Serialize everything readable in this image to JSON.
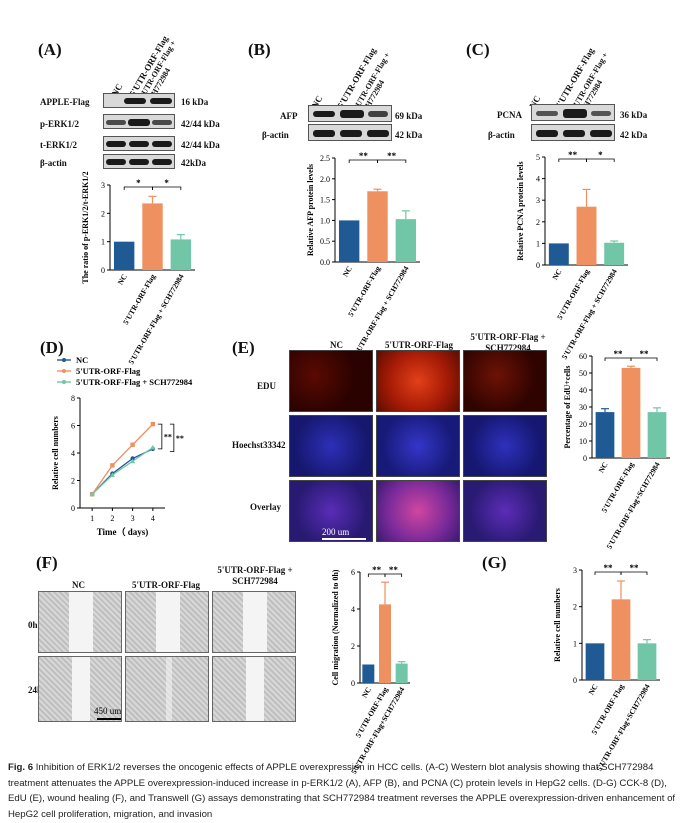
{
  "colors": {
    "nc": "#1f5a94",
    "flag": "#ee9060",
    "sch": "#72c6a8"
  },
  "panelA": {
    "label": "(A)",
    "columns": [
      "NC",
      "5'UTR-ORF-Flag",
      "5'UTR-ORF-Flag + SCH772984"
    ],
    "bands": [
      {
        "name": "APPLE-Flag",
        "kda": "16 kDa"
      },
      {
        "name": "p-ERK1/2",
        "kda": "42/44 kDa"
      },
      {
        "name": "t-ERK1/2",
        "kda": "42/44 kDa"
      },
      {
        "name": "β-actin",
        "kda": "42kDa"
      }
    ]
  },
  "panelB": {
    "label": "(B)",
    "columns": [
      "NC",
      "5'UTR-ORF-Flag",
      "5'UTR-ORF-Flag + SCH772984"
    ],
    "bands": [
      {
        "name": "AFP",
        "kda": "69 kDa"
      },
      {
        "name": "β-actin",
        "kda": "42 kDa"
      }
    ]
  },
  "panelC": {
    "label": "(C)",
    "columns": [
      "NC",
      "5'UTR-ORF-Flag",
      "5'UTR-ORF-Flag + SCH772984"
    ],
    "bands": [
      {
        "name": "PCNA",
        "kda": "36 kDa"
      },
      {
        "name": "β-actin",
        "kda": "42 kDa"
      }
    ]
  },
  "panelD": {
    "label": "(D)"
  },
  "panelE": {
    "label": "(E)",
    "columns": [
      "NC",
      "5'UTR-ORF-Flag",
      "5'UTR-ORF-Flag + SCH772984"
    ],
    "rows": [
      "EDU",
      "Hoechst33342",
      "Overlay"
    ],
    "scale": "200 um"
  },
  "panelF": {
    "label": "(F)",
    "columns": [
      "NC",
      "5'UTR-ORF-Flag",
      "5'UTR-ORF-Flag + SCH772984"
    ],
    "rows": [
      "0h",
      "24h"
    ],
    "scale": "450 um"
  },
  "panelG": {
    "label": "(G)"
  },
  "chart_data": [
    {
      "id": "A",
      "type": "bar",
      "categories": [
        "NC",
        "5'UTR-ORF-Flag",
        "5'UTR-ORF-Flag + SCH772984"
      ],
      "values": [
        1.0,
        2.35,
        1.08
      ],
      "errors": [
        0,
        0.25,
        0.17
      ],
      "ylabel": "The ratio of p-ERK1/2/t-ERK1/2",
      "ylim": [
        0,
        3
      ],
      "yticks": [
        "0",
        "1",
        "2",
        "3"
      ],
      "sig": [
        "*",
        "*"
      ]
    },
    {
      "id": "B",
      "type": "bar",
      "categories": [
        "NC",
        "5'UTR-ORF-Flag",
        "5'UTR-ORF-Flag + SCH772984"
      ],
      "values": [
        1.0,
        1.7,
        1.03
      ],
      "errors": [
        0,
        0.05,
        0.2
      ],
      "ylabel": "Relative AFP protein levels",
      "ylim": [
        0,
        2.5
      ],
      "yticks": [
        "0.0",
        "0.5",
        "1.0",
        "1.5",
        "2.0",
        "2.5"
      ],
      "sig": [
        "**",
        "**"
      ]
    },
    {
      "id": "C",
      "type": "bar",
      "categories": [
        "NC",
        "5'UTR-ORF-Flag",
        "5'UTR-ORF-Flag + SCH772984"
      ],
      "values": [
        1.0,
        2.7,
        1.03
      ],
      "errors": [
        0,
        0.8,
        0.08
      ],
      "ylabel": "Relative PCNA protein levels",
      "ylim": [
        0,
        5
      ],
      "yticks": [
        "0",
        "1",
        "2",
        "3",
        "4",
        "5"
      ],
      "sig": [
        "**",
        "*"
      ]
    },
    {
      "id": "D",
      "type": "line",
      "x": [
        1,
        2,
        3,
        4
      ],
      "xticks": [
        "1",
        "2",
        "3",
        "4"
      ],
      "xlabel": "Time（ days)",
      "ylabel": "Relative cell numbers",
      "ylim": [
        0,
        8
      ],
      "yticks": [
        "0",
        "2",
        "4",
        "6",
        "8"
      ],
      "sig": [
        "**",
        "**"
      ],
      "series": [
        {
          "name": "NC",
          "values": [
            1.0,
            2.5,
            3.6,
            4.3
          ]
        },
        {
          "name": "5'UTR-ORF-Flag",
          "values": [
            1.0,
            3.1,
            4.6,
            6.1
          ]
        },
        {
          "name": "5'UTR-ORF-Flag + SCH772984",
          "values": [
            1.0,
            2.4,
            3.4,
            4.4
          ]
        }
      ]
    },
    {
      "id": "E",
      "type": "bar",
      "categories": [
        "NC",
        "5'UTR-ORF-Flag",
        "5'UTR-ORF-Flag+SCH772984"
      ],
      "values": [
        27,
        53,
        27
      ],
      "errors": [
        2,
        1,
        2.5
      ],
      "ylabel": "Percentage of EdU+cells",
      "ylim": [
        0,
        60
      ],
      "yticks": [
        "0",
        "10",
        "20",
        "30",
        "40",
        "50",
        "60"
      ],
      "sig": [
        "**",
        "**"
      ]
    },
    {
      "id": "F",
      "type": "bar",
      "categories": [
        "NC",
        "5'UTR-ORF-Flag",
        "5'UTR-ORF-Flag+SCH772984"
      ],
      "values": [
        1.0,
        4.25,
        1.05
      ],
      "errors": [
        0,
        1.2,
        0.1
      ],
      "ylabel": "Cell migration (Normalized to 0h)",
      "ylim": [
        0,
        6
      ],
      "yticks": [
        "0",
        "2",
        "4",
        "6"
      ],
      "sig": [
        "**",
        "**"
      ]
    },
    {
      "id": "G",
      "type": "bar",
      "categories": [
        "NC",
        "5'UTR-ORF-Flag",
        "5'UTR-ORF-Flag+SCH772984"
      ],
      "values": [
        1.0,
        2.2,
        1.0
      ],
      "errors": [
        0,
        0.5,
        0.1
      ],
      "ylabel": "Relative cell numbers",
      "ylim": [
        0,
        3
      ],
      "yticks": [
        "0",
        "1",
        "2",
        "3"
      ],
      "sig": [
        "**",
        "**"
      ]
    }
  ],
  "caption": {
    "fig": "Fig. 6",
    "title": "Inhibition of ERK1/2 reverses the oncogenic effects of APPLE overexpression in HCC cells.",
    "body": "(A-C) Western blot analysis showing that SCH772984 treatment attenuates the APPLE overexpression-induced increase in p-ERK1/2 (A), AFP (B), and PCNA (C) protein levels in HepG2 cells. (D-G) CCK-8 (D), EdU (E), wound healing (F), and Transwell (G) assays demonstrating that SCH772984 treatment reverses the APPLE overexpression-driven enhancement of HepG2 cell proliferation, migration, and invasion"
  }
}
